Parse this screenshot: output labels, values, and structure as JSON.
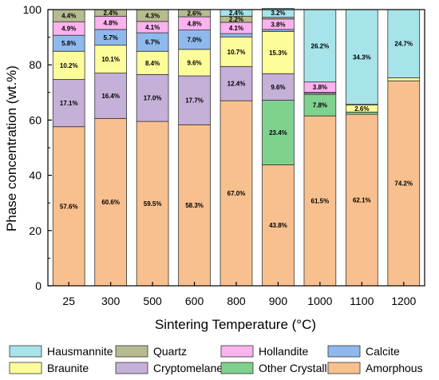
{
  "chart_data": {
    "type": "bar",
    "stacked": true,
    "xlabel": "Sintering Temperature (°C)",
    "ylabel": "Phase concentration (wt.%)",
    "ylim": [
      0,
      100
    ],
    "yticks": [
      "0",
      "20",
      "40",
      "60",
      "80",
      "100"
    ],
    "categories": [
      "25",
      "300",
      "500",
      "600",
      "800",
      "900",
      "1000",
      "1100",
      "1200"
    ],
    "legend_position": "bottom",
    "series": [
      {
        "name": "Amorphous",
        "color": "#f8c08e",
        "values": [
          57.6,
          60.6,
          59.5,
          58.3,
          67.0,
          43.8,
          61.5,
          62.1,
          74.2
        ],
        "labels": [
          "57.6%",
          "60.6%",
          "59.5%",
          "58.3%",
          "67.0%",
          "43.8%",
          "61.5%",
          "62.1%",
          "74.2%"
        ]
      },
      {
        "name": "Other Crystalline",
        "color": "#7fd18e",
        "values": [
          0,
          0,
          0,
          0,
          0,
          23.4,
          7.8,
          0.8,
          0
        ],
        "labels": [
          "",
          "",
          "",
          "",
          "",
          "23.4%",
          "7.8%",
          "",
          ""
        ]
      },
      {
        "name": "Cryptomelane",
        "color": "#c5b0d8",
        "values": [
          17.1,
          16.4,
          17.0,
          17.7,
          12.4,
          9.6,
          0.5,
          0,
          0
        ],
        "labels": [
          "17.1%",
          "16.4%",
          "17.0%",
          "17.7%",
          "12.4%",
          "9.6%",
          "",
          "",
          ""
        ]
      },
      {
        "name": "Braunite",
        "color": "#fdfc9b",
        "values": [
          10.2,
          10.1,
          8.4,
          9.6,
          10.7,
          15.3,
          0.2,
          2.6,
          1.1
        ],
        "labels": [
          "10.2%",
          "10.1%",
          "8.4%",
          "9.6%",
          "10.7%",
          "15.3%",
          "",
          "2.6%",
          ""
        ]
      },
      {
        "name": "Calcite",
        "color": "#8fb9ec",
        "values": [
          5.8,
          5.7,
          6.7,
          7.0,
          1.2,
          0.7,
          0,
          0,
          0
        ],
        "labels": [
          "5.8%",
          "5.7%",
          "6.7%",
          "7.0%",
          "",
          "",
          "",
          "",
          ""
        ]
      },
      {
        "name": "Hollandite",
        "color": "#fcb2ef",
        "values": [
          4.9,
          4.8,
          4.1,
          4.8,
          4.1,
          3.8,
          3.8,
          0.2,
          0
        ],
        "labels": [
          "4.9%",
          "4.8%",
          "4.1%",
          "4.8%",
          "4.1%",
          "3.8%",
          "3.8%",
          "",
          ""
        ]
      },
      {
        "name": "Quartz",
        "color": "#b7bb8f",
        "values": [
          4.4,
          2.4,
          4.3,
          2.6,
          2.2,
          0.6,
          0,
          0,
          0
        ],
        "labels": [
          "4.4%",
          "2.4%",
          "4.3%",
          "2.6%",
          "2.2%",
          "",
          "",
          "",
          ""
        ]
      },
      {
        "name": "Hausmannite",
        "color": "#a6e4ea",
        "values": [
          0,
          0,
          0,
          0,
          2.4,
          3.2,
          26.2,
          34.3,
          24.7
        ],
        "labels": [
          "",
          "",
          "",
          "",
          "2.4%",
          "3.2%",
          "26.2%",
          "34.3%",
          "24.7%"
        ]
      }
    ],
    "legend_order": [
      "Hausmannite",
      "Quartz",
      "Hollandite",
      "Calcite",
      "Braunite",
      "Cryptomelane",
      "Other Crystalline",
      "Amorphous"
    ]
  }
}
